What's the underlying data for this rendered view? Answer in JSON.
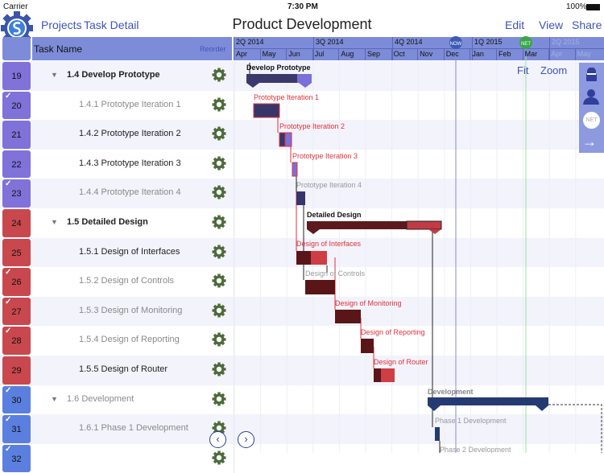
{
  "status": {
    "carrier": "Carrier",
    "time": "7:30 PM",
    "battery": "100%"
  },
  "nav": {
    "projects": "Projects",
    "task_detail": "Task Detail",
    "title": "Product Development",
    "edit": "Edit",
    "view": "View",
    "share": "Share"
  },
  "columns": {
    "task_name": "Task Name",
    "reorder": "Reorder"
  },
  "timeline": {
    "quarters": [
      "2Q 2014",
      "3Q 2014",
      "4Q 2014",
      "1Q 2015",
      "2Q 2015"
    ],
    "months": [
      "Apr",
      "May",
      "Jun",
      "Jul",
      "Aug",
      "Sep",
      "Oct",
      "Nov",
      "Dec",
      "Jan",
      "Feb",
      "Mar",
      "Apr",
      "May"
    ],
    "now": "NOW",
    "net": "NET",
    "fit": "Fit",
    "zoom": "Zoom"
  },
  "sidebar": {
    "net": "NET"
  },
  "colors": {
    "prototype": "#7f72d9",
    "design": "#c8484d",
    "development": "#5b7fdf"
  },
  "rows": [
    {
      "id": "19",
      "name": "1.4 Develop Prototype",
      "summary": true,
      "done": false,
      "group": "prototype",
      "level": 0
    },
    {
      "id": "20",
      "name": "1.4.1 Prototype Iteration 1",
      "done": true,
      "group": "prototype",
      "level": 1
    },
    {
      "id": "21",
      "name": "1.4.2 Prototype Iteration 2",
      "done": false,
      "group": "prototype",
      "level": 1
    },
    {
      "id": "22",
      "name": "1.4.3 Prototype Iteration 3",
      "done": false,
      "group": "prototype",
      "level": 1
    },
    {
      "id": "23",
      "name": "1.4.4 Prototype Iteration 4",
      "done": true,
      "group": "prototype",
      "level": 1
    },
    {
      "id": "24",
      "name": "1.5 Detailed Design",
      "summary": true,
      "done": false,
      "group": "design",
      "level": 0
    },
    {
      "id": "25",
      "name": "1.5.1 Design of Interfaces",
      "done": false,
      "group": "design",
      "level": 1
    },
    {
      "id": "26",
      "name": "1.5.2 Design of Controls",
      "done": true,
      "group": "design",
      "level": 1
    },
    {
      "id": "27",
      "name": "1.5.3 Design of Monitoring",
      "done": true,
      "group": "design",
      "level": 1
    },
    {
      "id": "28",
      "name": "1.5.4 Design of Reporting",
      "done": true,
      "group": "design",
      "level": 1
    },
    {
      "id": "29",
      "name": "1.5.5 Design of Router",
      "done": false,
      "group": "design",
      "level": 1
    },
    {
      "id": "30",
      "name": "1.6 Development",
      "summary": true,
      "done": true,
      "group": "development",
      "level": 0
    },
    {
      "id": "31",
      "name": "1.6.1 Phase 1 Development",
      "done": true,
      "group": "development",
      "level": 1
    },
    {
      "id": "32",
      "name": "",
      "done": true,
      "group": "development",
      "level": 1
    }
  ],
  "bars": {
    "develop_prototype": "Develop Prototype",
    "iter1": "Prototype Iteration 1",
    "iter2": "Prototype Iteration 2",
    "iter3": "Prototype Iteration 3",
    "iter4": "Prototype Iteration 4",
    "detailed_design": "Detailed Design",
    "interfaces": "Design of Interfaces",
    "controls": "Design of Controls",
    "monitoring": "Design of Monitoring",
    "reporting": "Design of Reporting",
    "router": "Design of Router",
    "development": "Development",
    "phase1": "Phase 1 Development",
    "phase2": "Phase 2 Development"
  }
}
